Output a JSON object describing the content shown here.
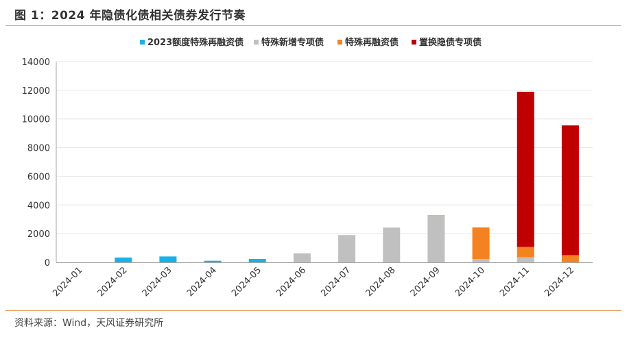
{
  "header": {
    "title": "图 1：2024 年隐债化债相关债券发行节奏"
  },
  "footer": {
    "source": "资料来源：Wind，天风证券研究所"
  },
  "chart_data": {
    "type": "bar",
    "stacked": true,
    "title": "",
    "xlabel": "",
    "ylabel": "",
    "ylim": [
      0,
      14000
    ],
    "yticks": [
      0,
      2000,
      4000,
      6000,
      8000,
      10000,
      12000,
      14000
    ],
    "grid": true,
    "legend_position": "top",
    "categories": [
      "2024-01",
      "2024-02",
      "2024-03",
      "2024-04",
      "2024-05",
      "2024-06",
      "2024-07",
      "2024-08",
      "2024-09",
      "2024-10",
      "2024-11",
      "2024-12"
    ],
    "series": [
      {
        "name": "2023额度特殊再融资债",
        "color": "#1ab0e8",
        "values": [
          0,
          330,
          410,
          110,
          240,
          0,
          0,
          0,
          0,
          0,
          0,
          0
        ]
      },
      {
        "name": "特殊新增专项债",
        "color": "#c0c0c0",
        "values": [
          0,
          0,
          0,
          0,
          0,
          620,
          1900,
          2420,
          3240,
          230,
          350,
          0
        ]
      },
      {
        "name": "特殊再融资债",
        "color": "#f58220",
        "values": [
          0,
          0,
          0,
          0,
          0,
          0,
          0,
          0,
          40,
          2200,
          720,
          500
        ]
      },
      {
        "name": "置换隐债专项债",
        "color": "#c00000",
        "values": [
          0,
          0,
          0,
          0,
          0,
          0,
          0,
          0,
          0,
          0,
          10830,
          9050
        ]
      }
    ]
  }
}
